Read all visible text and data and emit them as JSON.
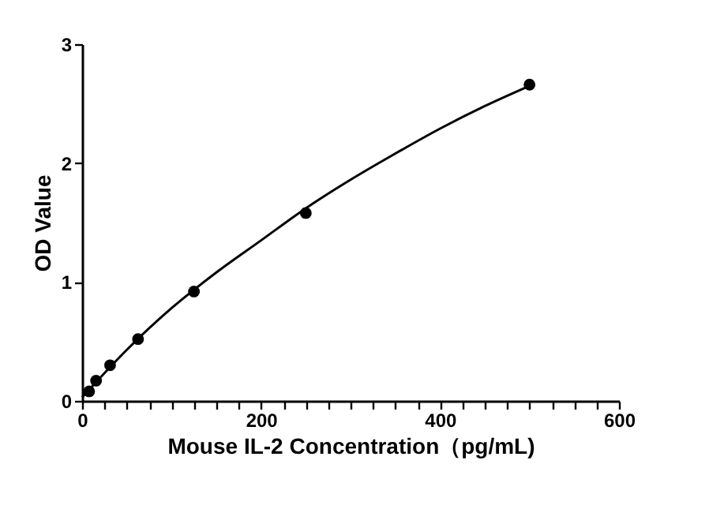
{
  "chart_data": {
    "type": "scatter",
    "xlabel": "Mouse IL-2 Concentration（pg/mL)",
    "ylabel": "OD Value",
    "xlim": [
      0,
      600
    ],
    "ylim": [
      0,
      3
    ],
    "xticks": [
      0,
      {
        "value": 25,
        "label": null
      },
      {
        "value": 50,
        "label": null
      },
      {
        "value": 75,
        "label": null
      },
      {
        "value": 100,
        "label": null
      },
      {
        "value": 125,
        "label": null
      },
      {
        "value": 150,
        "label": null
      },
      {
        "value": 175,
        "label": null
      },
      200,
      {
        "value": 225,
        "label": null
      },
      {
        "value": 250,
        "label": null
      },
      {
        "value": 275,
        "label": null
      },
      {
        "value": 300,
        "label": null
      },
      {
        "value": 325,
        "label": null
      },
      {
        "value": 350,
        "label": null
      },
      {
        "value": 375,
        "label": null
      },
      400,
      {
        "value": 425,
        "label": null
      },
      {
        "value": 450,
        "label": null
      },
      {
        "value": 475,
        "label": null
      },
      {
        "value": 500,
        "label": null
      },
      {
        "value": 525,
        "label": null
      },
      {
        "value": 550,
        "label": null
      },
      {
        "value": 575,
        "label": null
      },
      600
    ],
    "yticks": [
      0,
      1,
      2,
      3
    ],
    "grid": false,
    "marker": "circle",
    "series": [
      {
        "color": "#000000",
        "x": [
          7.8,
          15.6,
          31.25,
          62.5,
          125,
          250,
          500
        ],
        "values": [
          0.08,
          0.17,
          0.3,
          0.52,
          0.92,
          1.58,
          2.66
        ]
      },
      {
        "type": "line",
        "color": "#000000",
        "line_style": "solid",
        "marker": "none",
        "x": [
          0,
          50,
          100,
          150,
          200,
          250,
          300,
          350,
          400,
          450,
          500
        ],
        "values": [
          0.03,
          0.43,
          0.78,
          1.08,
          1.35,
          1.62,
          1.86,
          2.08,
          2.29,
          2.48,
          2.65
        ]
      }
    ]
  }
}
